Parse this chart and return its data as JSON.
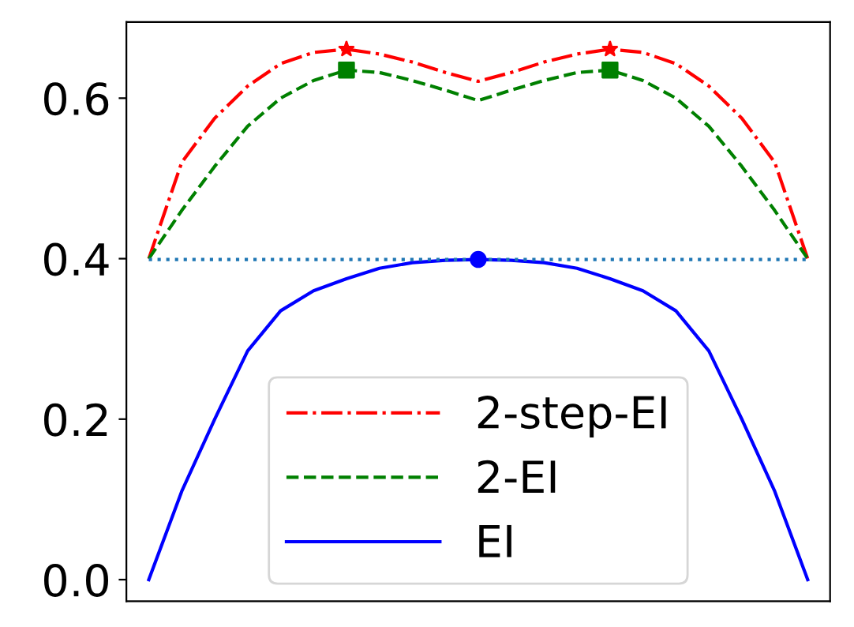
{
  "chart_data": {
    "type": "line",
    "categories": [
      null,
      null,
      null,
      null,
      null,
      null,
      null,
      null,
      null,
      null,
      null,
      null,
      null,
      null,
      null,
      null,
      null,
      null,
      null,
      null,
      null
    ],
    "series": [
      {
        "name": "2-step-EI",
        "color": "#ff0000",
        "line_style": "dashdot",
        "values": [
          0.4,
          0.52,
          0.575,
          0.615,
          0.643,
          0.657,
          0.661,
          0.655,
          0.645,
          0.632,
          0.621,
          0.632,
          0.645,
          0.655,
          0.661,
          0.657,
          0.643,
          0.615,
          0.575,
          0.52,
          0.4
        ]
      },
      {
        "name": "2-EI",
        "color": "#008000",
        "line_style": "dashed",
        "values": [
          0.4,
          0.46,
          0.515,
          0.565,
          0.6,
          0.622,
          0.635,
          0.632,
          0.622,
          0.61,
          0.597,
          0.61,
          0.622,
          0.632,
          0.635,
          0.622,
          0.6,
          0.565,
          0.515,
          0.46,
          0.4
        ]
      },
      {
        "name": "EI",
        "color": "#0000ff",
        "line_style": "solid",
        "values": [
          0.0,
          0.11,
          0.2,
          0.285,
          0.335,
          0.36,
          0.375,
          0.388,
          0.395,
          0.398,
          0.399,
          0.398,
          0.395,
          0.388,
          0.375,
          0.36,
          0.335,
          0.285,
          0.2,
          0.11,
          0.0
        ]
      },
      {
        "type": "scatter",
        "color": "#ff0000",
        "marker": "star",
        "values": [
          null,
          null,
          null,
          null,
          null,
          null,
          0.661,
          null,
          null,
          null,
          null,
          null,
          null,
          null,
          0.661,
          null,
          null,
          null,
          null,
          null,
          null
        ]
      },
      {
        "type": "scatter",
        "color": "#008000",
        "marker": "square",
        "values": [
          null,
          null,
          null,
          null,
          null,
          null,
          0.635,
          null,
          null,
          null,
          null,
          null,
          null,
          null,
          0.635,
          null,
          null,
          null,
          null,
          null,
          null
        ]
      },
      {
        "type": "scatter",
        "color": "#0000ff",
        "marker": "circle",
        "values": [
          null,
          null,
          null,
          null,
          null,
          null,
          null,
          null,
          null,
          null,
          0.399,
          null,
          null,
          null,
          null,
          null,
          null,
          null,
          null,
          null,
          null
        ]
      }
    ],
    "ref_lines": [
      {
        "axis": "y",
        "value": 0.399,
        "color": "#1f77b4",
        "line_style": "dotted"
      }
    ],
    "ylim": [
      -0.027,
      0.695
    ],
    "yticks": [
      {
        "value": 0,
        "label": "0.0"
      },
      0.2,
      0.4,
      0.6
    ],
    "tick_labels": "y",
    "grid": false,
    "legend": "bottom"
  }
}
